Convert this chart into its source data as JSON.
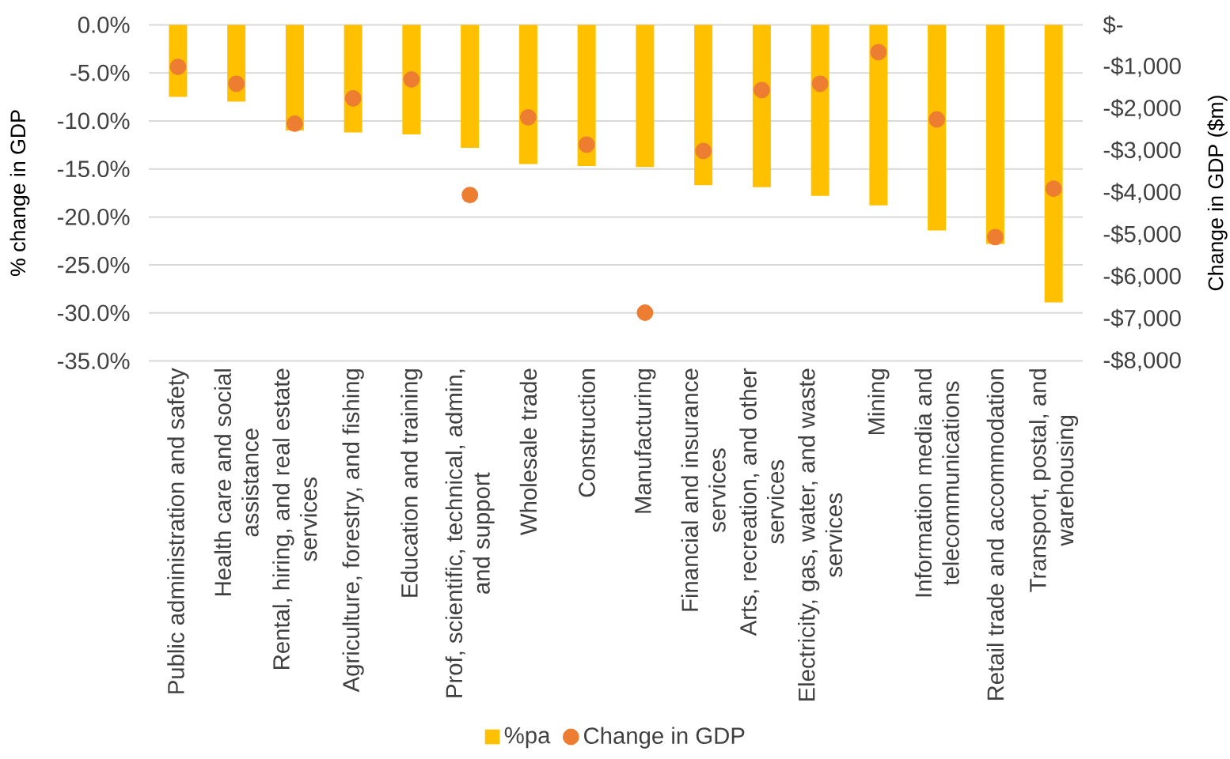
{
  "chart_data": {
    "type": "bar",
    "categories": [
      "Public administration and safety",
      "Health care and social assistance",
      "Rental, hiring, and real estate services",
      "Agriculture, forestry, and fishing",
      "Education and training",
      "Prof, scientific, technical, admin, and support",
      "Wholesale trade",
      "Construction",
      "Manufacturing",
      "Financial and insurance services",
      "Arts, recreation, and other services",
      "Electricity, gas, water, and waste services",
      "Mining",
      "Information media and telecommunications",
      "Retail trade and accommodation",
      "Transport, postal, and warehousing"
    ],
    "series": [
      {
        "name": "%pa",
        "color": "#FFC000",
        "values": [
          -7.5,
          -8.0,
          -11.0,
          -11.2,
          -11.4,
          -12.8,
          -14.5,
          -14.7,
          -14.8,
          -16.7,
          -16.9,
          -17.8,
          -18.8,
          -21.4,
          -22.8,
          -28.9
        ]
      },
      {
        "name": "Change in GDP",
        "type": "scatter",
        "axis": "y2",
        "color": "#ED7D31",
        "values": [
          -1000,
          -1400,
          -2350,
          -1750,
          -1300,
          -4050,
          -2200,
          -2850,
          -6850,
          -3000,
          -1550,
          -1400,
          -650,
          -2250,
          -5050,
          -3900
        ]
      }
    ],
    "ylabel": "% change in GDP",
    "y2label": "Change in GDP ($m)",
    "ylim": [
      -35,
      0
    ],
    "yticks": [
      {
        "value": 0,
        "label": "0.0%"
      },
      {
        "value": -5,
        "label": "-5.0%"
      },
      {
        "value": -10,
        "label": "-10.0%"
      },
      {
        "value": -15,
        "label": "-15.0%"
      },
      {
        "value": -20,
        "label": "-20.0%"
      },
      {
        "value": -25,
        "label": "-25.0%"
      },
      {
        "value": -30,
        "label": "-30.0%"
      },
      {
        "value": -35,
        "label": "-35.0%"
      }
    ],
    "y2lim": [
      -8000,
      0
    ],
    "y2ticks": [
      {
        "value": 0,
        "label": "$-"
      },
      {
        "value": -1000,
        "label": "-$1,000"
      },
      {
        "value": -2000,
        "label": "-$2,000"
      },
      {
        "value": -3000,
        "label": "-$3,000"
      },
      {
        "value": -4000,
        "label": "-$4,000"
      },
      {
        "value": -5000,
        "label": "-$5,000"
      },
      {
        "value": -6000,
        "label": "-$6,000"
      },
      {
        "value": -7000,
        "label": "-$7,000"
      },
      {
        "value": -8000,
        "label": "-$8,000"
      }
    ],
    "grid": "y",
    "legend": "bottom",
    "marker": "circle"
  }
}
